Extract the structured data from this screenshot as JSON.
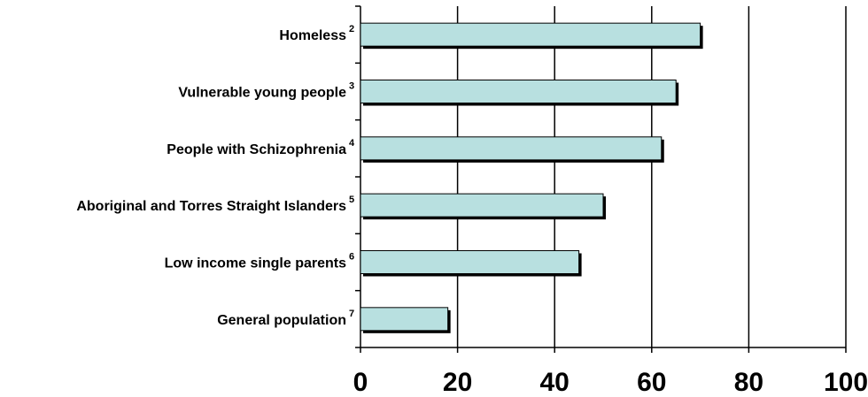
{
  "chart_data": {
    "type": "bar",
    "orientation": "horizontal",
    "categories": [
      {
        "label": "Homeless",
        "note": "2"
      },
      {
        "label": "Vulnerable young people",
        "note": "3"
      },
      {
        "label": "People with Schizophrenia",
        "note": "4"
      },
      {
        "label": "Aboriginal and Torres Straight Islanders",
        "note": "5"
      },
      {
        "label": "Low income single parents",
        "note": "6"
      },
      {
        "label": "General population",
        "note": "7"
      }
    ],
    "values": [
      70,
      65,
      62,
      50,
      45,
      18
    ],
    "xlim": [
      0,
      100
    ],
    "xticks": [
      0,
      20,
      40,
      60,
      80,
      100
    ],
    "grid": true,
    "legend": false,
    "title": "",
    "xlabel": "",
    "ylabel": "",
    "colors": {
      "bar_fill": "#b8e0e0",
      "bar_border": "#000000",
      "bar_shadow": "#000000",
      "grid": "#000000",
      "axis": "#000000"
    }
  }
}
